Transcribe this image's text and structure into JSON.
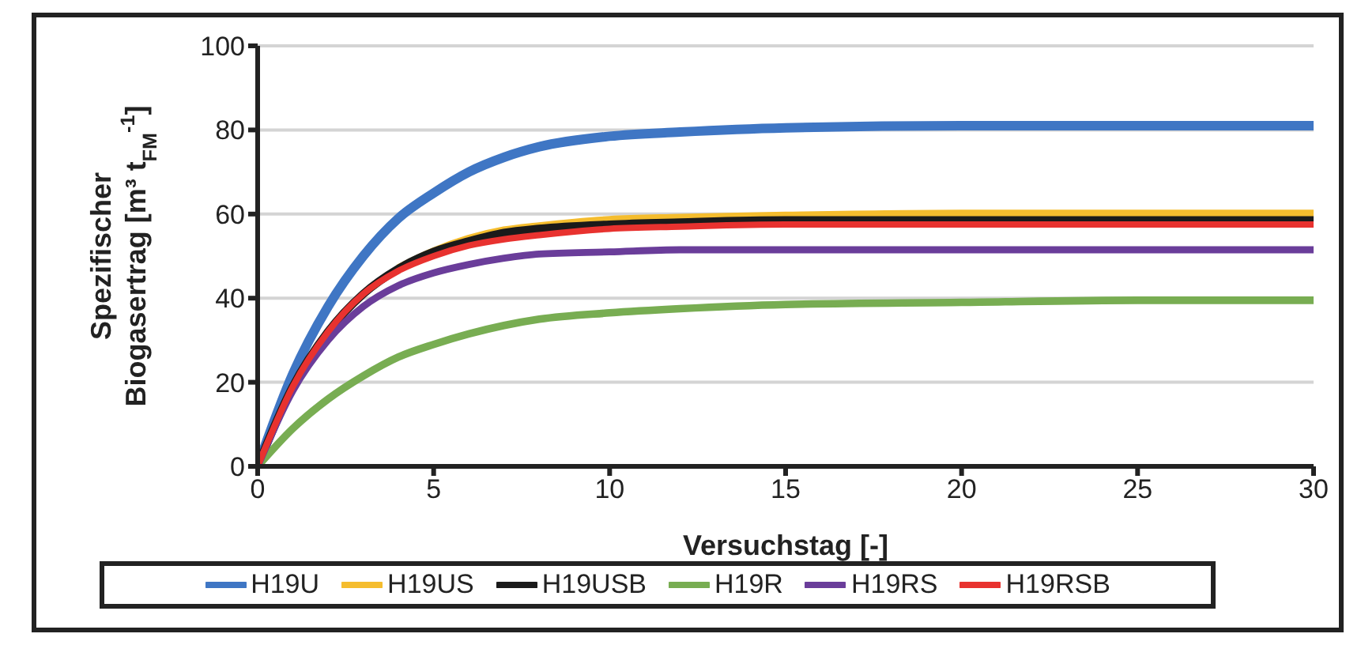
{
  "chart_data": {
    "type": "line",
    "xlabel": "Versuchstag [-]",
    "ylabel": "Spezifischer\nBiogasertrag [m³ t$_{FM}$$^{-1}$]",
    "x": [
      0,
      1,
      2,
      3,
      4,
      5,
      6,
      7,
      8,
      10,
      12,
      15,
      20,
      25,
      30
    ],
    "xlim": [
      0,
      30
    ],
    "xticks": [
      0,
      5,
      10,
      15,
      20,
      25,
      30
    ],
    "ylim": [
      0,
      100
    ],
    "yticks": [
      0,
      20,
      40,
      60,
      80,
      100
    ],
    "grid": "y",
    "legend": "bottom",
    "marker": "none",
    "line_style": "solid",
    "series": [
      {
        "name": "H19U",
        "color": "#3f76c4",
        "values": [
          0,
          22,
          38,
          50,
          59,
          65,
          70,
          73.5,
          76,
          78.5,
          79.5,
          80.5,
          81,
          81,
          81
        ]
      },
      {
        "name": "H19US",
        "color": "#f5bd2e",
        "values": [
          null,
          null,
          null,
          null,
          47,
          51,
          54,
          56,
          57,
          58.5,
          59,
          59.5,
          60,
          60,
          60
        ]
      },
      {
        "name": "H19USB",
        "color": "#1a1a1a",
        "values": [
          0,
          19,
          32,
          41,
          47,
          51,
          53.5,
          55.5,
          56.5,
          57.5,
          58,
          58.5,
          58.5,
          58.5,
          58.5
        ]
      },
      {
        "name": "H19R",
        "color": "#78ad52",
        "values": [
          0,
          9,
          16,
          21.5,
          26,
          29,
          31.5,
          33.5,
          35,
          36.5,
          37.5,
          38.5,
          39,
          39.5,
          39.5
        ]
      },
      {
        "name": "H19RS",
        "color": "#6a3d9a",
        "values": [
          0,
          18,
          30,
          38,
          43,
          46,
          48,
          49.5,
          50.5,
          51,
          51.5,
          51.5,
          51.5,
          51.5,
          51.5
        ]
      },
      {
        "name": "H19RSB",
        "color": "#e8322f",
        "values": [
          0,
          19,
          32,
          41,
          46.5,
          50,
          52.5,
          54,
          55,
          56.5,
          57,
          57.5,
          57.5,
          57.5,
          57.5
        ]
      }
    ]
  }
}
